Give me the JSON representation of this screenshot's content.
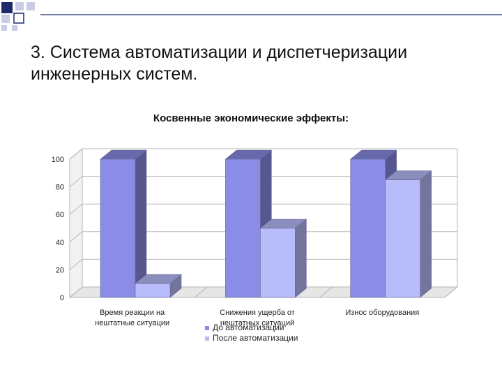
{
  "slide": {
    "title": "3. Система автоматизации и диспетчеризации инженерных систем."
  },
  "colors": {
    "deco_dark": "#1d2a6b",
    "deco_light": "#c9cce4",
    "series_before": "#8a8ce6",
    "series_after": "#b9bcfb"
  },
  "chart_data": {
    "type": "bar",
    "title": "Косвенные экономические эффекты:",
    "categories": [
      "Время реакции на нештатные ситуации",
      "Снижения ущерба от нештатных ситуаций",
      "Износ оборудования"
    ],
    "series": [
      {
        "name": "До автоматизации",
        "values": [
          100,
          100,
          100
        ],
        "color": "#8a8ce6"
      },
      {
        "name": "После автоматизации",
        "values": [
          10,
          50,
          85
        ],
        "color": "#b9bcfb"
      }
    ],
    "ylim": [
      0,
      100
    ],
    "yticks": [
      0,
      20,
      40,
      60,
      80,
      100
    ],
    "grid": true,
    "legend": "bottom"
  }
}
